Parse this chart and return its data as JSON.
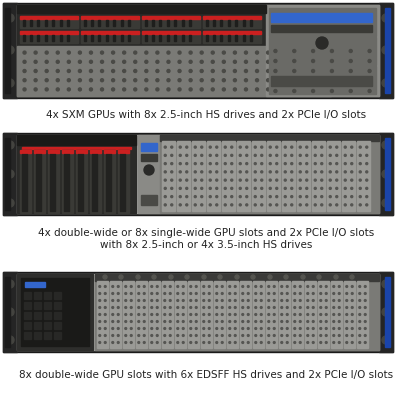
{
  "background_color": "#ffffff",
  "fig_width": 4.13,
  "fig_height": 4.0,
  "dpi": 100,
  "captions": [
    "4x SXM GPUs with 8x 2.5-inch HS drives and 2x PCIe I/O slots",
    "4x double-wide or 8x single-wide GPU slots and 2x PCIe I/O slots\nwith 8x 2.5-inch or 4x 3.5-inch HS drives",
    "8x double-wide GPU slots with 6x EDSFF HS drives and 2x PCIe I/O slots"
  ],
  "caption_fontsize": 7.5,
  "text_color": "#222222",
  "bg": "#ffffff",
  "c_chassis": "#1a1a1a",
  "c_body": "#b0b0ac",
  "c_dark": "#2e2e2e",
  "c_vent": "#7a7a76",
  "c_vent2": "#888884",
  "c_red": "#cc2020",
  "c_blue": "#3366cc",
  "c_lenovo": "#1a44aa",
  "c_io": "#8a8a86",
  "c_drive": "#3a3a36",
  "c_rail": "#555550"
}
